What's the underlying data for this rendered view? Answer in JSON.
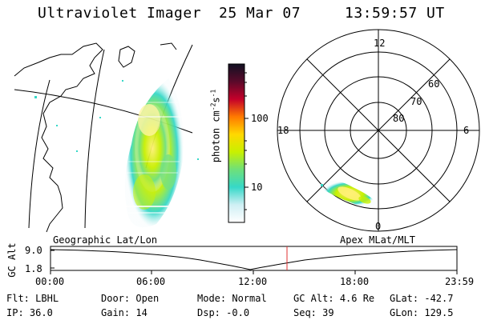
{
  "header": {
    "instrument": "Ultraviolet Imager",
    "date": "25 Mar 07",
    "time": "13:59:57 UT"
  },
  "colorbar": {
    "unit_label": "photon cm",
    "unit_sup1": "-2",
    "unit_mid": "s",
    "unit_sup2": "-1",
    "ticks": [
      "100",
      "10"
    ],
    "scale": "log",
    "colors": [
      "#111122",
      "#5a0a2a",
      "#c4002a",
      "#ff7a00",
      "#ffd800",
      "#c8f000",
      "#6ee07a",
      "#36d8c8",
      "#cfeff4",
      "#ffffff"
    ]
  },
  "polar": {
    "mlt_labels": [
      "12",
      "18",
      "6",
      "0"
    ],
    "lat_labels": [
      "60",
      "70",
      "80"
    ]
  },
  "timeline": {
    "y_label": "GC Alt",
    "y_ticks": [
      "9.0",
      "1.8"
    ],
    "left_title": "Geographic Lat/Lon",
    "right_title": "Apex MLat/MLT",
    "x_ticks": [
      "00:00",
      "06:00",
      "12:00",
      "18:00",
      "23:59"
    ],
    "current_marker_color": "#e03030"
  },
  "info": [
    {
      "label": "Flt:",
      "value": "LBHL"
    },
    {
      "label": "Door:",
      "value": "Open"
    },
    {
      "label": "Mode:",
      "value": "Normal"
    },
    {
      "label": "GC Alt:",
      "value": "4.6 Re"
    },
    {
      "label": "GLat:",
      "value": "-42.7"
    },
    {
      "label": "IP:",
      "value": "36.0"
    },
    {
      "label": "Gain:",
      "value": "14"
    },
    {
      "label": "Dsp:",
      "value": "-0.0"
    },
    {
      "label": "Seq:",
      "value": "39"
    },
    {
      "label": "GLon:",
      "value": "129.5"
    }
  ]
}
